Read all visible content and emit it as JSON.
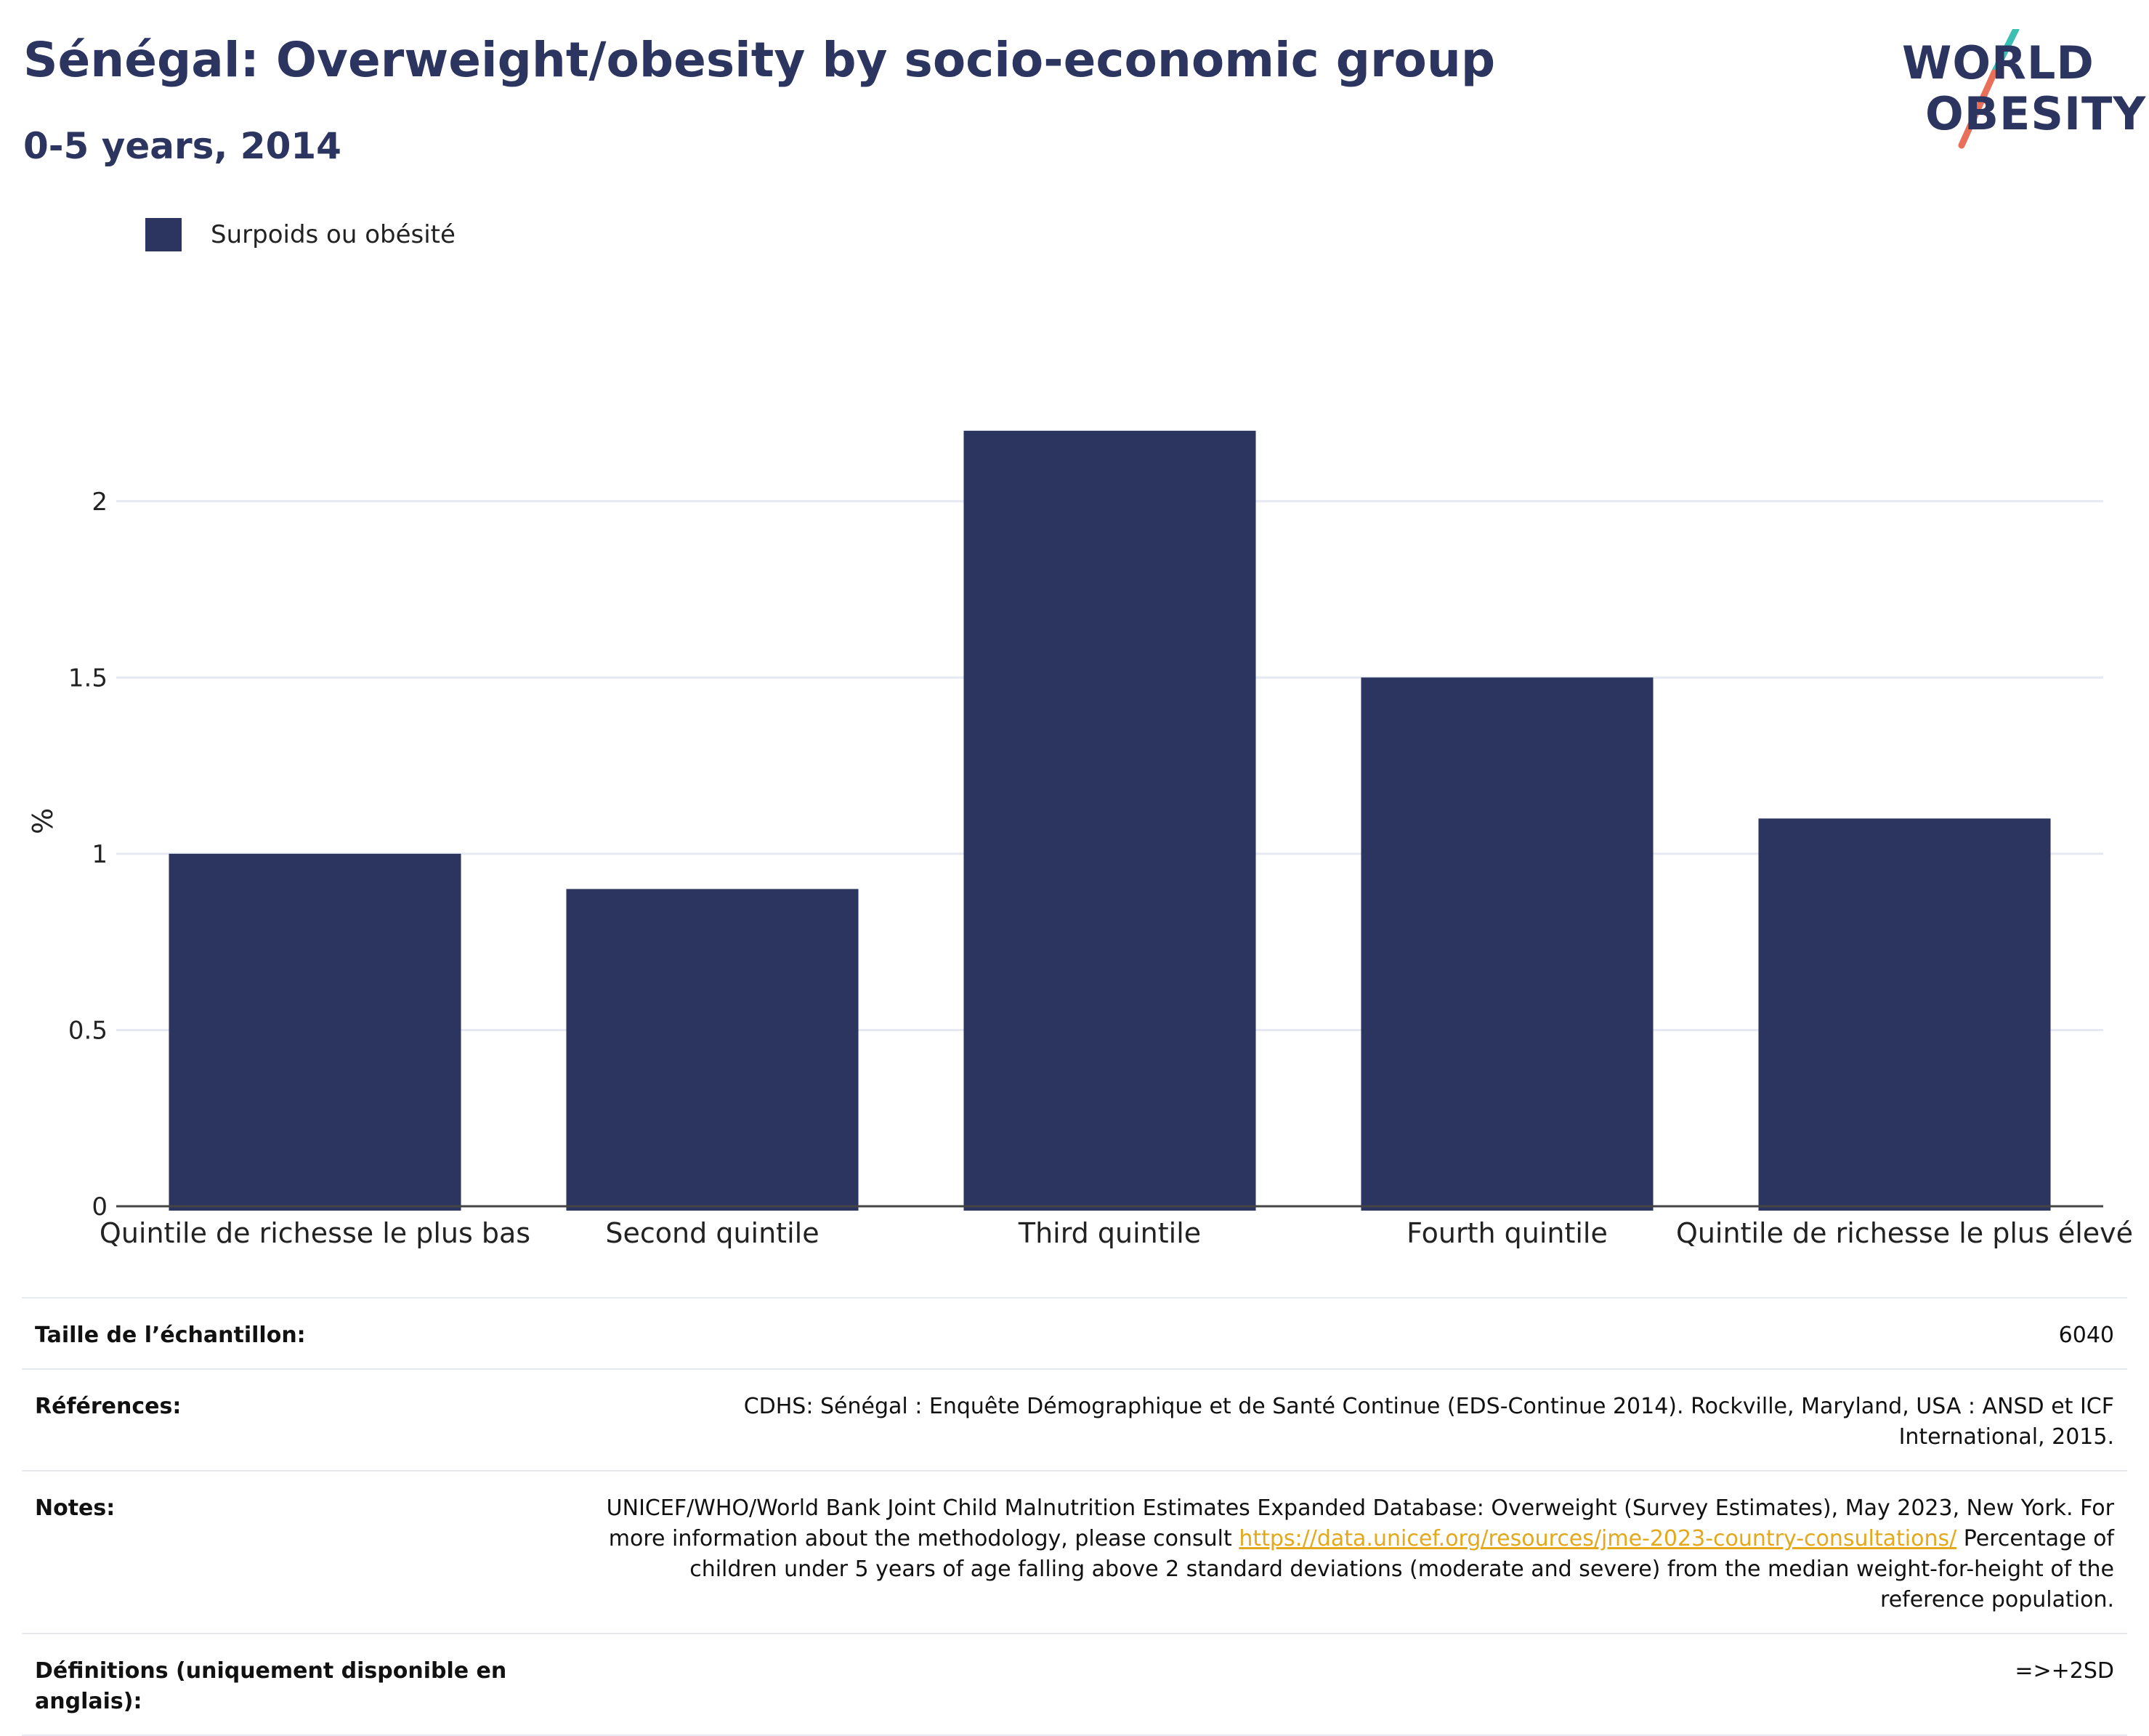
{
  "header": {
    "title": "Sénégal: Overweight/obesity by socio-economic group",
    "subtitle": "0-5 years, 2014"
  },
  "logo": {
    "line1": "WORLD",
    "line2": "OBESITY",
    "colors": {
      "text": "#2b3560",
      "slash_top": "#3bbfb3",
      "slash_bottom": "#e8705a"
    }
  },
  "legend": {
    "label": "Surpoids ou obésité",
    "color": "#2b3560"
  },
  "chart_data": {
    "type": "bar",
    "categories": [
      "Quintile de richesse le plus bas",
      "Second quintile",
      "Third quintile",
      "Fourth quintile",
      "Quintile de richesse le plus élevé"
    ],
    "series": [
      {
        "name": "Surpoids ou obésité",
        "values": [
          1.0,
          0.9,
          2.2,
          1.5,
          1.1
        ],
        "color": "#2b3560"
      }
    ],
    "ylabel": "%",
    "ylim": [
      0,
      2.35
    ],
    "yticks": [
      0,
      0.5,
      1,
      1.5,
      2
    ],
    "ytick_labels": [
      "0",
      "0.5",
      "1",
      "1.5",
      "2"
    ],
    "grid": true,
    "legend_position": "top-left"
  },
  "info_table": {
    "sample_label": "Taille de l’échantillon:",
    "sample_value": "6040",
    "references_label": "Références:",
    "references_value": "CDHS: Sénégal : Enquête Démographique et de Santé Continue (EDS-Continue 2014). Rockville, Maryland, USA : ANSD et ICF International, 2015.",
    "notes_label": "Notes:",
    "notes_text_1": "UNICEF/WHO/World Bank Joint Child Malnutrition Estimates Expanded Database: Overweight (Survey Estimates), May 2023, New York. For more information about the methodology, please consult",
    "notes_link": "https://data.unicef.org/resources/jme-2023-country-consultations/",
    "notes_text_2": "Percentage of children under 5 years of age falling above 2 standard deviations (moderate and severe) from the median weight-for-height of the reference population.",
    "definitions_label": "Définitions (uniquement disponible en anglais):",
    "definitions_value": "=>+2SD"
  }
}
